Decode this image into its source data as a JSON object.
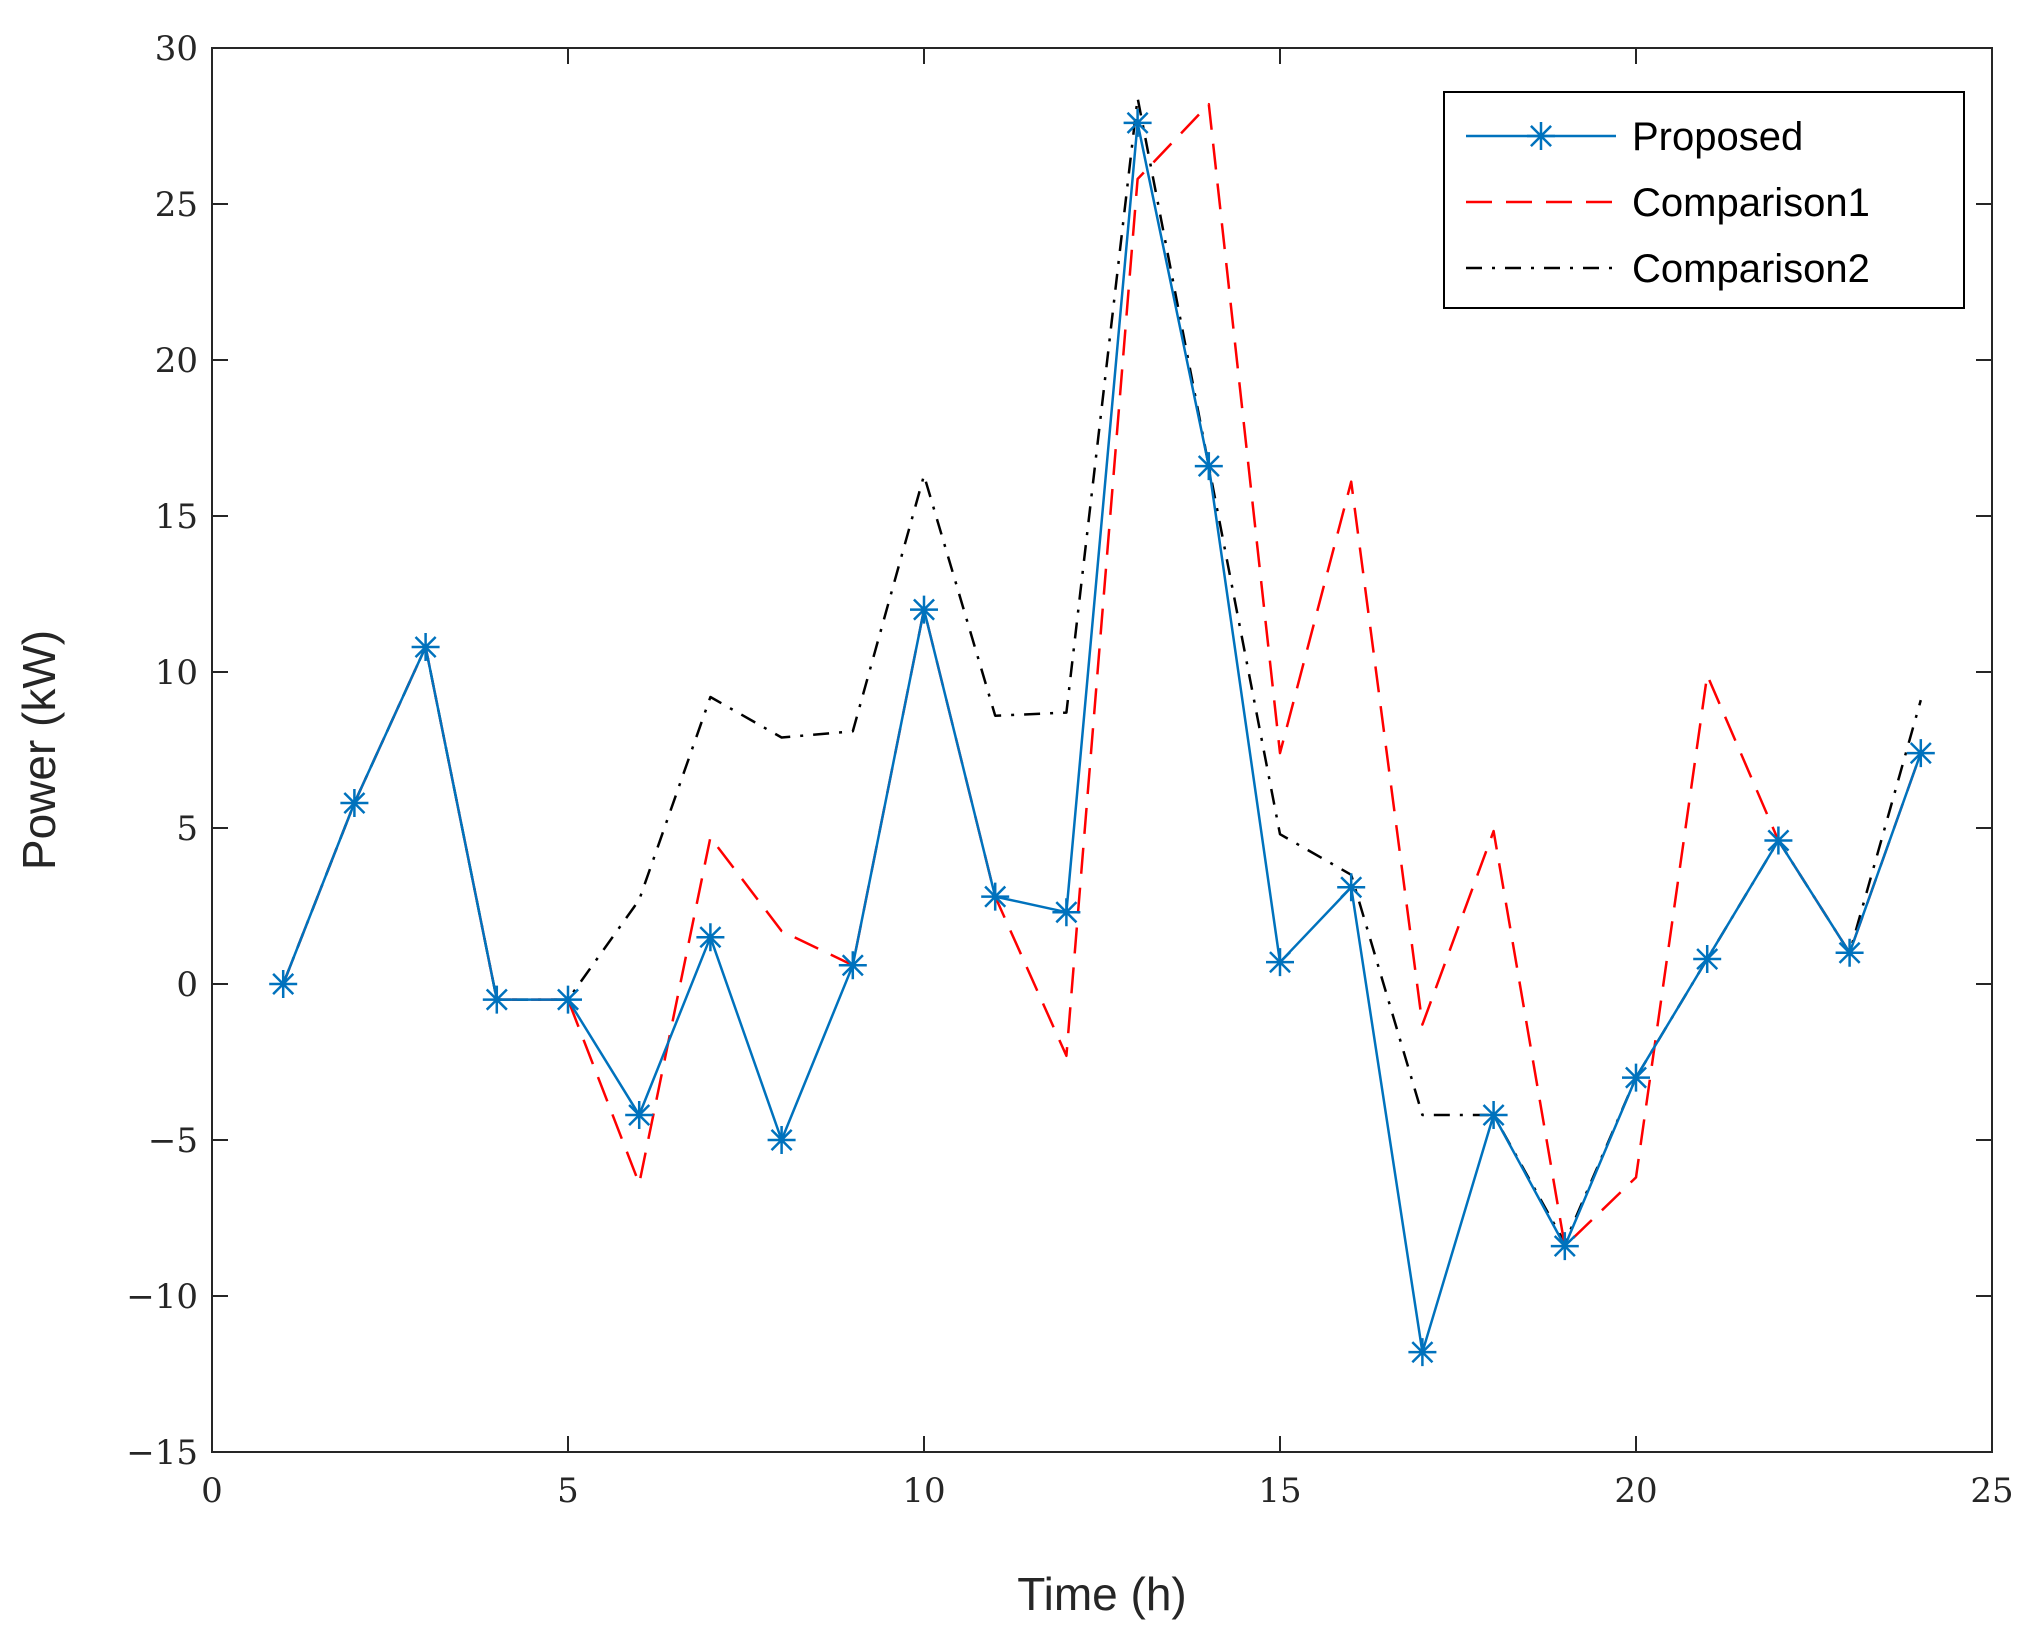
{
  "chart_data": {
    "type": "line",
    "title": "",
    "xlabel": "Time (h)",
    "ylabel": "Power (kW)",
    "xlim": [
      0,
      25
    ],
    "ylim": [
      -15,
      30
    ],
    "xticks": [
      0,
      5,
      10,
      15,
      20,
      25
    ],
    "xtick_labels": [
      "0",
      "5",
      "10",
      "15",
      "20",
      "25"
    ],
    "yticks": [
      -15,
      -10,
      -5,
      0,
      5,
      10,
      15,
      20,
      25,
      30
    ],
    "ytick_labels": [
      "−15",
      "−10",
      "−5",
      "0",
      "5",
      "10",
      "15",
      "20",
      "25",
      "30"
    ],
    "grid": false,
    "legend_position": "top-right",
    "x": [
      1,
      2,
      3,
      4,
      5,
      6,
      7,
      8,
      9,
      10,
      11,
      12,
      13,
      14,
      15,
      16,
      17,
      18,
      19,
      20,
      21,
      22,
      23,
      24
    ],
    "series": [
      {
        "name": "Proposed",
        "color": "#0072BD",
        "style": "solid-star",
        "values": [
          0,
          5.8,
          10.8,
          -0.5,
          -0.5,
          -4.2,
          1.5,
          -5,
          0.6,
          12,
          2.8,
          2.3,
          27.6,
          16.6,
          0.7,
          3.1,
          -11.8,
          -4.2,
          -8.4,
          -3,
          0.8,
          4.6,
          1,
          7.4
        ]
      },
      {
        "name": "Comparison1",
        "color": "#FF0000",
        "style": "dashed",
        "values": [
          0,
          5.8,
          10.8,
          -0.5,
          -0.5,
          -6.4,
          4.7,
          1.7,
          0.6,
          12,
          2.8,
          -2.3,
          25.8,
          28.2,
          7.4,
          16.1,
          -1.3,
          4.9,
          -8.4,
          -6.2,
          9.9,
          4.6,
          1,
          7.4
        ]
      },
      {
        "name": "Comparison2",
        "color": "#000000",
        "style": "dashdot",
        "values": [
          0,
          5.8,
          10.8,
          -0.5,
          -0.5,
          2.7,
          9.2,
          7.9,
          8.1,
          16.3,
          8.6,
          8.7,
          28.4,
          16.6,
          4.8,
          3.5,
          -4.2,
          -4.2,
          -8.3,
          -3,
          0.8,
          4.6,
          1,
          9.1
        ]
      }
    ]
  }
}
